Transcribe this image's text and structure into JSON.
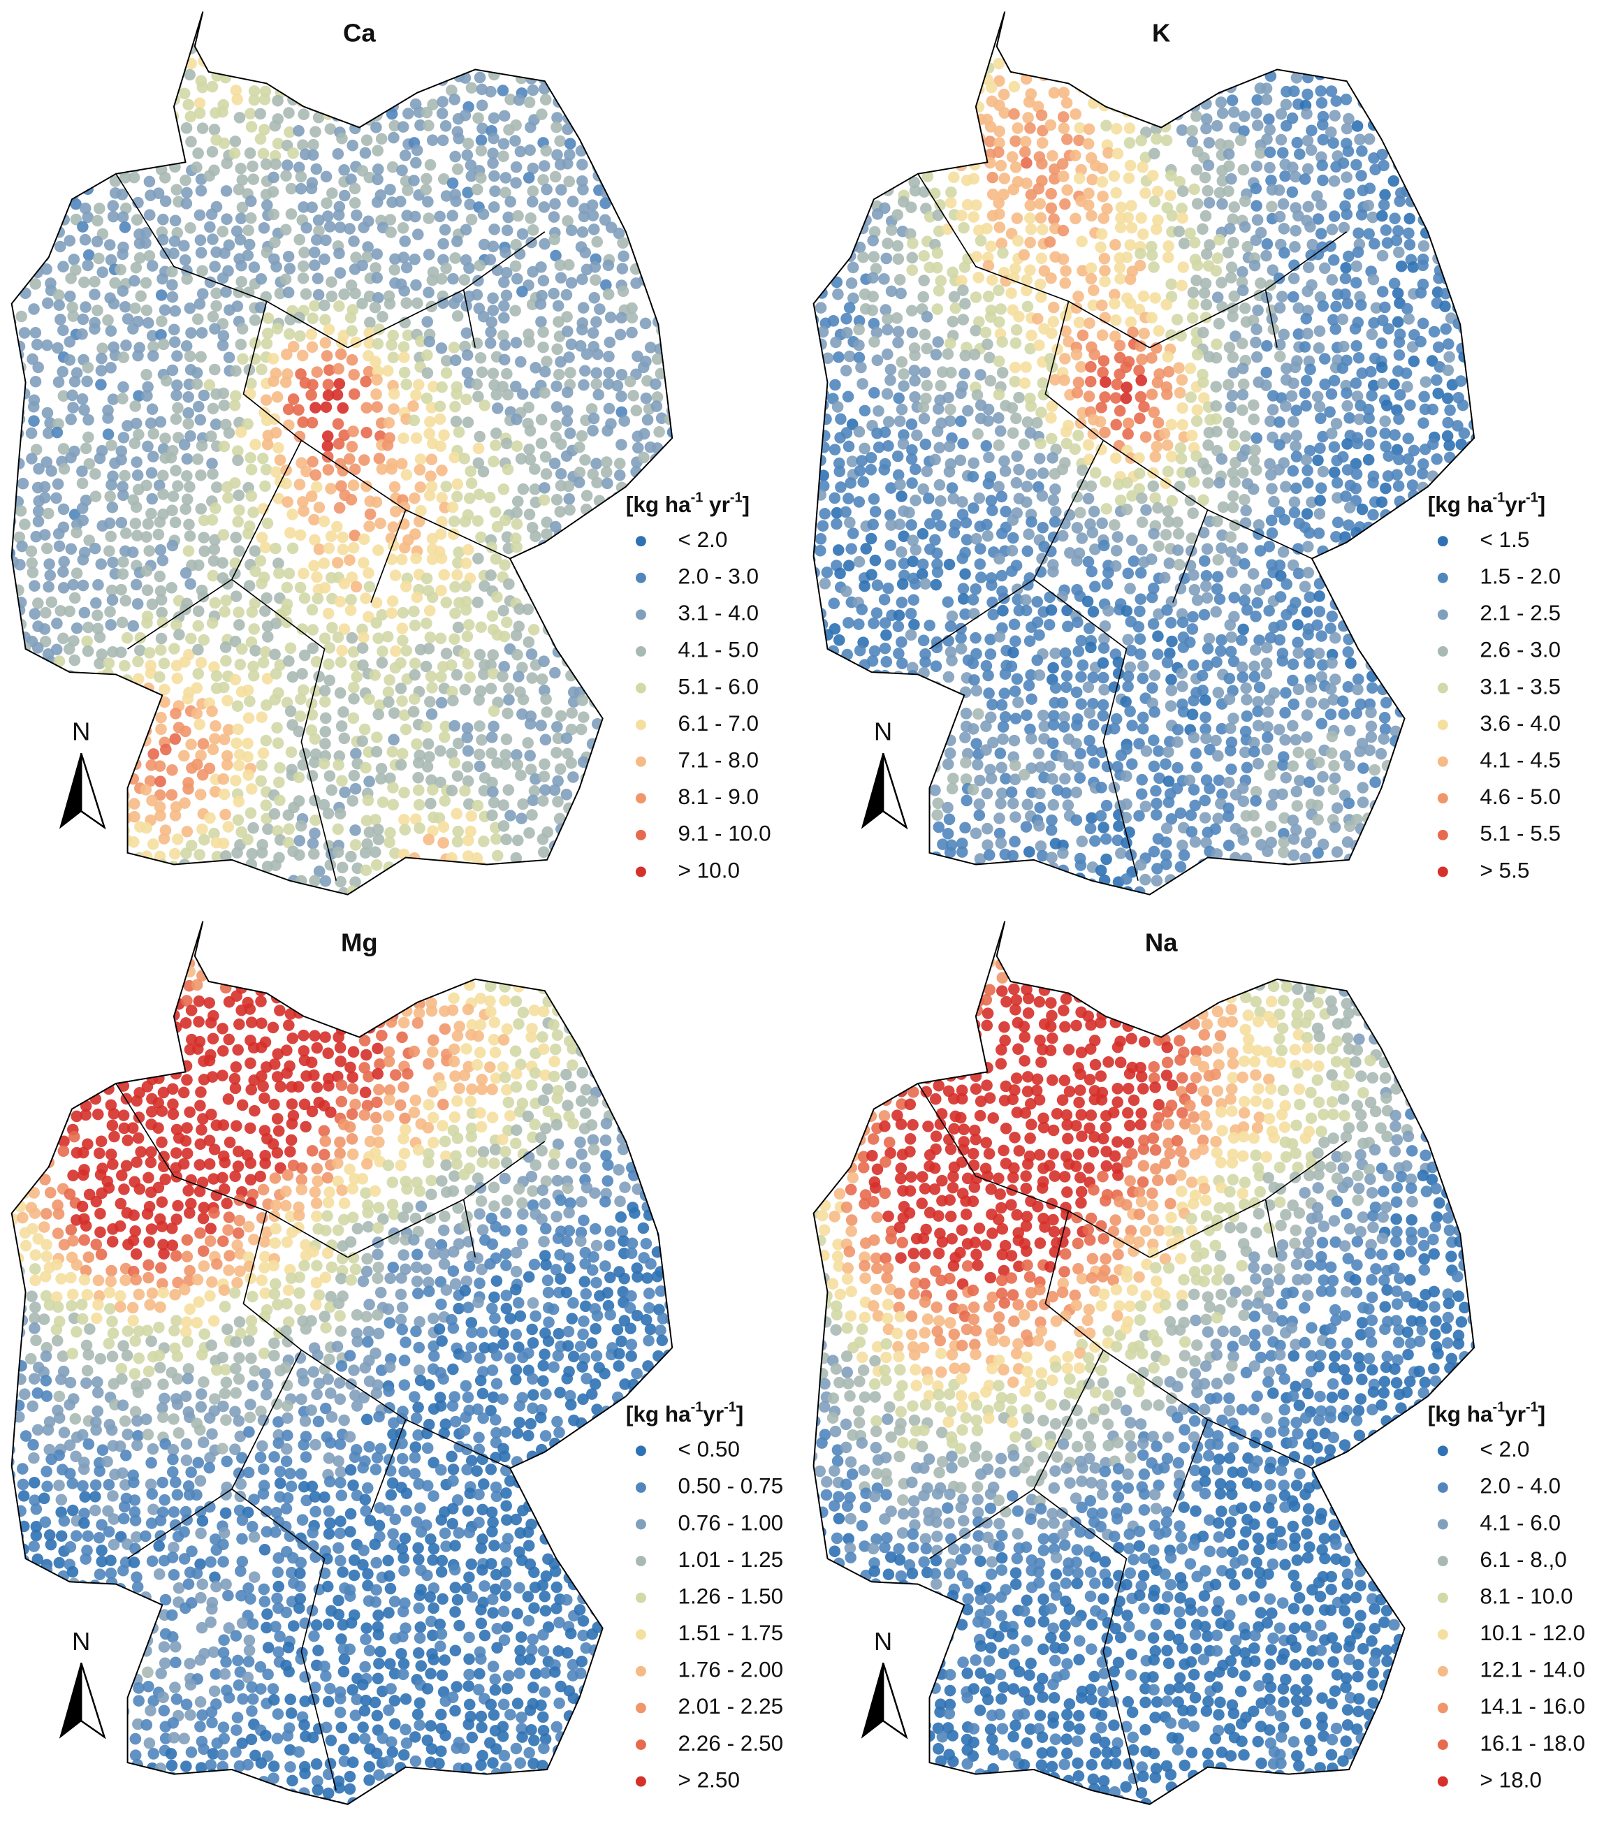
{
  "panels": [
    {
      "title": "Ca",
      "north": "N",
      "legend": {
        "title": [
          "[kg ha",
          "-1",
          " yr",
          "-1",
          "]"
        ],
        "items": [
          {
            "label": "< 2.0",
            "color": "#2f72b4"
          },
          {
            "label": "2.0 - 3.0",
            "color": "#5186bd"
          },
          {
            "label": "3.1 - 4.0",
            "color": "#7f9fbd"
          },
          {
            "label": "4.1 - 5.0",
            "color": "#a8b9b4"
          },
          {
            "label": "5.1 - 6.0",
            "color": "#d2d8a6"
          },
          {
            "label": "6.1 - 7.0",
            "color": "#f5df9f"
          },
          {
            "label": "7.1 - 8.0",
            "color": "#f6ba86"
          },
          {
            "label": "8.1 - 9.0",
            "color": "#f0966a"
          },
          {
            "label": "9.1 - 10.0",
            "color": "#e76a4e"
          },
          {
            "label": "> 10.0",
            "color": "#d6302a"
          }
        ]
      }
    },
    {
      "title": "K",
      "north": "N",
      "legend": {
        "title": [
          "[kg ha",
          "-1",
          "yr",
          "-1",
          "]"
        ],
        "items": [
          {
            "label": "< 1.5",
            "color": "#2f72b4"
          },
          {
            "label": "1.5 - 2.0",
            "color": "#5186bd"
          },
          {
            "label": "2.1 - 2.5",
            "color": "#7f9fbd"
          },
          {
            "label": "2.6 - 3.0",
            "color": "#a8b9b4"
          },
          {
            "label": "3.1 - 3.5",
            "color": "#d2d8a6"
          },
          {
            "label": "3.6 - 4.0",
            "color": "#f5df9f"
          },
          {
            "label": "4.1 - 4.5",
            "color": "#f6ba86"
          },
          {
            "label": "4.6 - 5.0",
            "color": "#f0966a"
          },
          {
            "label": "5.1 - 5.5",
            "color": "#e76a4e"
          },
          {
            "label": "> 5.5",
            "color": "#d6302a"
          }
        ]
      }
    },
    {
      "title": "Mg",
      "north": "N",
      "legend": {
        "title": [
          "[kg ha",
          "-1",
          "yr",
          "-1",
          "]"
        ],
        "items": [
          {
            "label": "< 0.50",
            "color": "#2f72b4"
          },
          {
            "label": "0.50 - 0.75",
            "color": "#5186bd"
          },
          {
            "label": "0.76 - 1.00",
            "color": "#7f9fbd"
          },
          {
            "label": "1.01 - 1.25",
            "color": "#a8b9b4"
          },
          {
            "label": "1.26 - 1.50",
            "color": "#d2d8a6"
          },
          {
            "label": "1.51 - 1.75",
            "color": "#f5df9f"
          },
          {
            "label": "1.76 - 2.00",
            "color": "#f6ba86"
          },
          {
            "label": "2.01 - 2.25",
            "color": "#f0966a"
          },
          {
            "label": "2.26 - 2.50",
            "color": "#e76a4e"
          },
          {
            "label": "> 2.50",
            "color": "#d6302a"
          }
        ]
      }
    },
    {
      "title": "Na",
      "north": "N",
      "legend": {
        "title": [
          "[kg ha",
          "-1",
          "yr",
          "-1",
          "]"
        ],
        "items": [
          {
            "label": "< 2.0",
            "color": "#2f72b4"
          },
          {
            "label": "2.0 - 4.0",
            "color": "#5186bd"
          },
          {
            "label": "4.1 - 6.0",
            "color": "#7f9fbd"
          },
          {
            "label": "6.1 - 8.,0",
            "color": "#a8b9b4"
          },
          {
            "label": "8.1 - 10.0",
            "color": "#d2d8a6"
          },
          {
            "label": "10.1 - 12.0",
            "color": "#f5df9f"
          },
          {
            "label": "12.1 - 14.0",
            "color": "#f6ba86"
          },
          {
            "label": "14.1 - 16.0",
            "color": "#f0966a"
          },
          {
            "label": "16.1 - 18.0",
            "color": "#e76a4e"
          },
          {
            "label": "> 18.0",
            "color": "#d6302a"
          }
        ]
      }
    }
  ]
}
